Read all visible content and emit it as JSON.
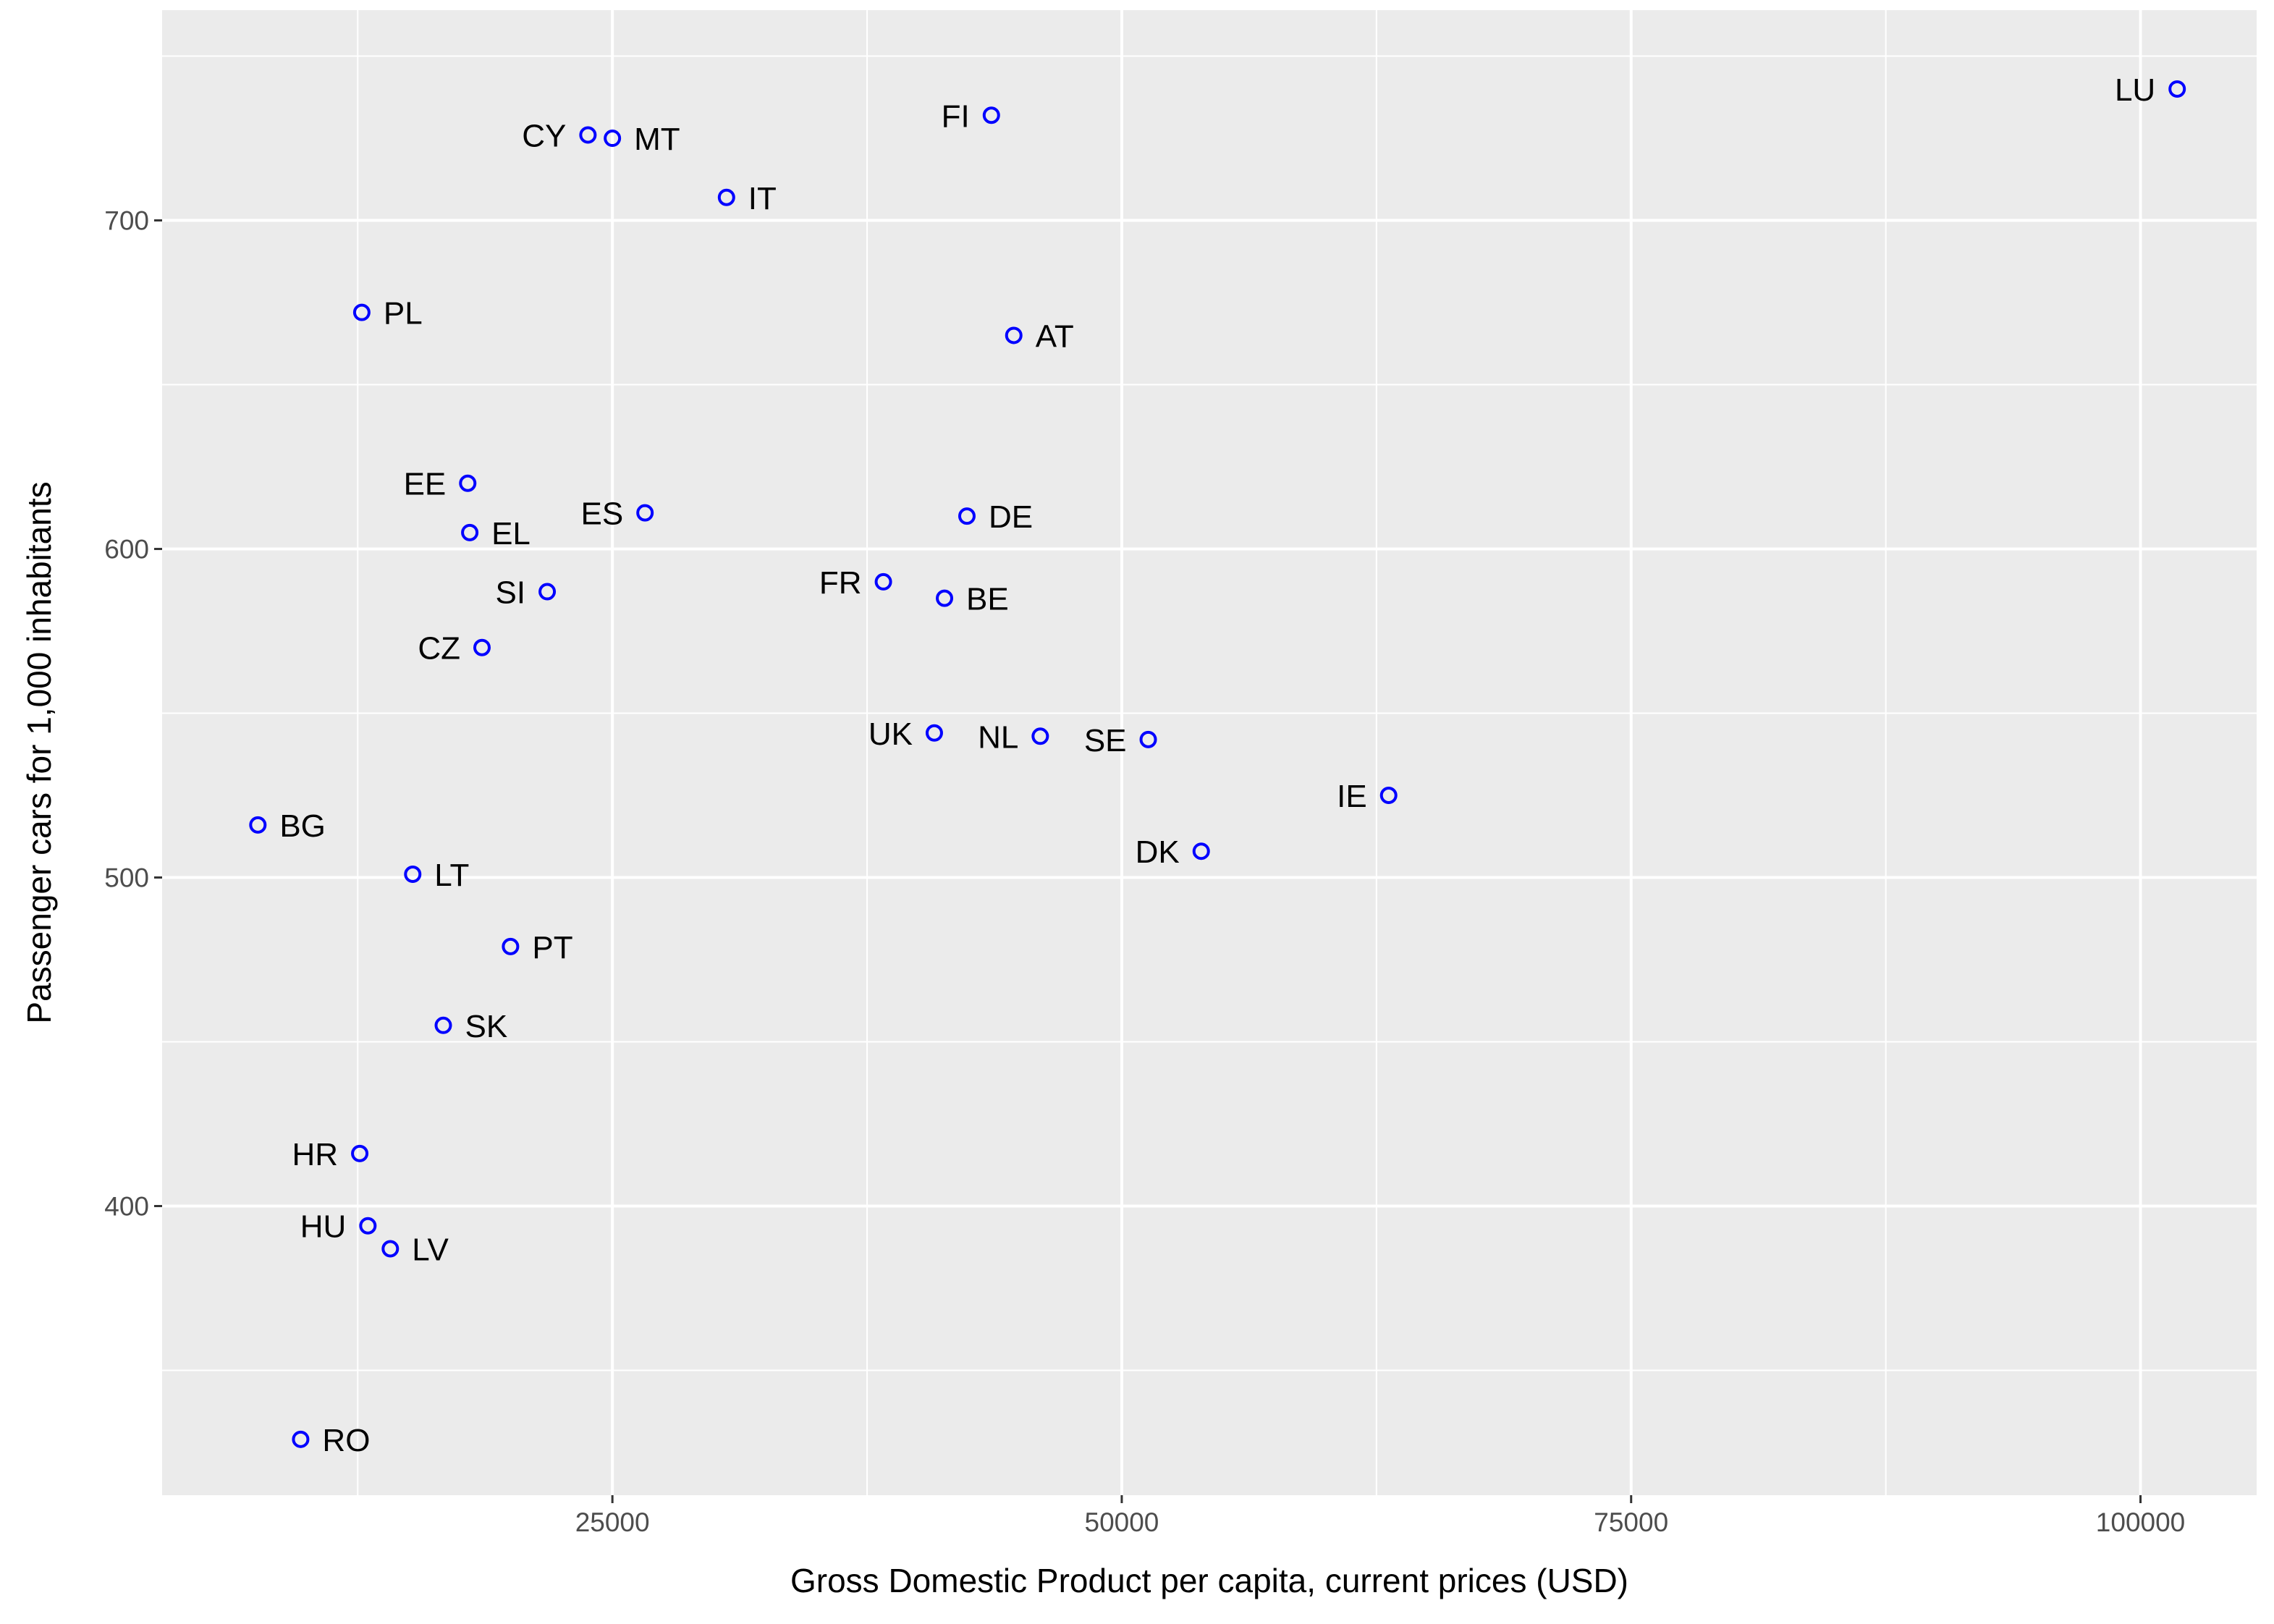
{
  "chart_data": {
    "type": "scatter",
    "xlabel": "Gross Domestic Product per capita, current prices (USD)",
    "ylabel": "Passenger cars for 1,000 inhabitants",
    "xlim": [
      2900,
      105700
    ],
    "ylim": [
      312,
      764
    ],
    "x_ticks": [
      25000,
      50000,
      75000,
      100000
    ],
    "x_tick_labels": [
      "25000",
      "50000",
      "75000",
      "100000"
    ],
    "y_ticks": [
      400,
      500,
      600,
      700
    ],
    "y_tick_labels": [
      "400",
      "500",
      "600",
      "700"
    ],
    "grid": true,
    "panel_color": "#ebebeb",
    "grid_color": "#ffffff",
    "point_color": "#0000ff",
    "points": [
      {
        "label": "LU",
        "x": 101800,
        "y": 740,
        "label_side": "left"
      },
      {
        "label": "FI",
        "x": 43600,
        "y": 732,
        "label_side": "left"
      },
      {
        "label": "CY",
        "x": 23800,
        "y": 726,
        "label_side": "left"
      },
      {
        "label": "MT",
        "x": 25000,
        "y": 725,
        "label_side": "right"
      },
      {
        "label": "IT",
        "x": 30600,
        "y": 707,
        "label_side": "right"
      },
      {
        "label": "PL",
        "x": 12700,
        "y": 672,
        "label_side": "right"
      },
      {
        "label": "AT",
        "x": 44700,
        "y": 665,
        "label_side": "right"
      },
      {
        "label": "EE",
        "x": 17900,
        "y": 620,
        "label_side": "left"
      },
      {
        "label": "ES",
        "x": 26600,
        "y": 611,
        "label_side": "left"
      },
      {
        "label": "DE",
        "x": 42400,
        "y": 610,
        "label_side": "right"
      },
      {
        "label": "EL",
        "x": 18000,
        "y": 605,
        "label_side": "right"
      },
      {
        "label": "FR",
        "x": 38300,
        "y": 590,
        "label_side": "left"
      },
      {
        "label": "SI",
        "x": 21800,
        "y": 587,
        "label_side": "left"
      },
      {
        "label": "BE",
        "x": 41300,
        "y": 585,
        "label_side": "right"
      },
      {
        "label": "CZ",
        "x": 18600,
        "y": 570,
        "label_side": "left"
      },
      {
        "label": "UK",
        "x": 40800,
        "y": 544,
        "label_side": "left"
      },
      {
        "label": "NL",
        "x": 46000,
        "y": 543,
        "label_side": "left"
      },
      {
        "label": "SE",
        "x": 51300,
        "y": 542,
        "label_side": "left"
      },
      {
        "label": "IE",
        "x": 63100,
        "y": 525,
        "label_side": "left"
      },
      {
        "label": "BG",
        "x": 7600,
        "y": 516,
        "label_side": "right"
      },
      {
        "label": "DK",
        "x": 53900,
        "y": 508,
        "label_side": "left"
      },
      {
        "label": "LT",
        "x": 15200,
        "y": 501,
        "label_side": "right"
      },
      {
        "label": "PT",
        "x": 20000,
        "y": 479,
        "label_side": "right"
      },
      {
        "label": "SK",
        "x": 16700,
        "y": 455,
        "label_side": "right"
      },
      {
        "label": "HR",
        "x": 12600,
        "y": 416,
        "label_side": "left"
      },
      {
        "label": "HU",
        "x": 13000,
        "y": 394,
        "label_side": "left"
      },
      {
        "label": "LV",
        "x": 14100,
        "y": 387,
        "label_side": "right"
      },
      {
        "label": "RO",
        "x": 9700,
        "y": 329,
        "label_side": "right"
      }
    ]
  }
}
